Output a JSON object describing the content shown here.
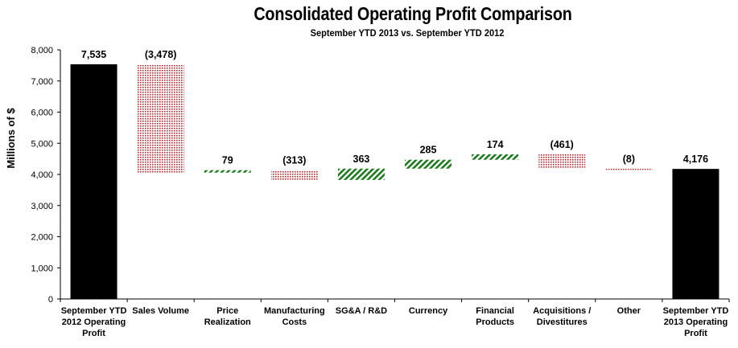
{
  "chart_data": {
    "type": "waterfall",
    "title": "Consolidated Operating Profit Comparison",
    "subtitle": "September YTD 2013 vs. September YTD 2012",
    "xlabel": "",
    "ylabel": "Millions of $",
    "ylim": [
      0,
      8000
    ],
    "yticks": [
      0,
      1000,
      2000,
      3000,
      4000,
      5000,
      6000,
      7000,
      8000
    ],
    "ytick_labels": [
      "0",
      "1,000",
      "2,000",
      "3,000",
      "4,000",
      "5,000",
      "6,000",
      "7,000",
      "8,000"
    ],
    "grid": false,
    "legend": "none",
    "categories": [
      [
        "September YTD",
        "2012 Operating",
        "Profit"
      ],
      [
        "Sales Volume"
      ],
      [
        "Price",
        "Realization"
      ],
      [
        "Manufacturing",
        "Costs"
      ],
      [
        "SG&A / R&D"
      ],
      [
        "Currency"
      ],
      [
        "Financial",
        "Products"
      ],
      [
        "Acquisitions /",
        "Divestitures"
      ],
      [
        "Other"
      ],
      [
        "September YTD",
        "2013 Operating",
        "Profit"
      ]
    ],
    "values": [
      7535,
      -3478,
      79,
      -313,
      363,
      285,
      174,
      -461,
      -8,
      4176
    ],
    "kinds": [
      "total",
      "delta",
      "delta",
      "delta",
      "delta",
      "delta",
      "delta",
      "delta",
      "delta",
      "total"
    ],
    "data_labels": [
      "7,535",
      "(3,478)",
      "79",
      "(313)",
      "363",
      "285",
      "174",
      "(461)",
      "(8)",
      "4,176"
    ],
    "colors": {
      "total": "#000000",
      "increase": "#1e7a1e",
      "decrease": "#c0282f"
    }
  }
}
